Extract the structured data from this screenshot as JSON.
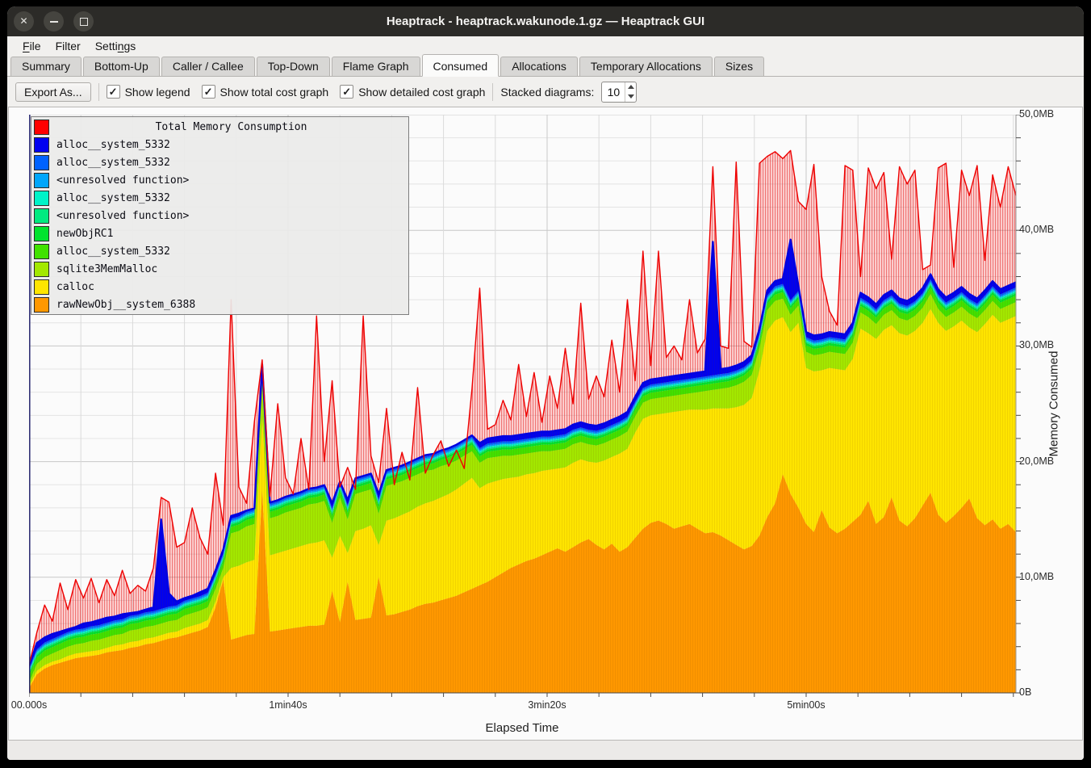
{
  "window": {
    "title": "Heaptrack - heaptrack.wakunode.1.gz — Heaptrack GUI",
    "controls": [
      {
        "name": "close",
        "glyph": "✕"
      },
      {
        "name": "minimize",
        "glyph": "–"
      },
      {
        "name": "maximize",
        "glyph": "□"
      }
    ]
  },
  "menu": {
    "items": [
      {
        "label": "File",
        "accel_index": 0
      },
      {
        "label": "Filter",
        "accel_index": -1
      },
      {
        "label": "Settings",
        "accel_index": 5
      }
    ]
  },
  "tabs": {
    "items": [
      "Summary",
      "Bottom-Up",
      "Caller / Callee",
      "Top-Down",
      "Flame Graph",
      "Consumed",
      "Allocations",
      "Temporary Allocations",
      "Sizes"
    ],
    "active": "Consumed"
  },
  "toolbar": {
    "export_label": "Export As...",
    "checkboxes": [
      {
        "label": "Show legend",
        "checked": true
      },
      {
        "label": "Show total cost graph",
        "checked": true
      },
      {
        "label": "Show detailed cost graph",
        "checked": true
      }
    ],
    "stacked_label": "Stacked diagrams:",
    "stacked_value": "10"
  },
  "chart_data": {
    "type": "area",
    "legend_title": "Total Memory Consumption",
    "xlabel": "Elapsed Time",
    "ylabel": "Memory Consumed",
    "ylim": [
      0,
      50
    ],
    "t_end_s": 381,
    "samples": 128,
    "grid": {
      "x_minor_step_s": 20,
      "x_major_step_s": 100,
      "y_minor_step_mb": 2,
      "y_major_step_mb": 10
    },
    "x_ticks": [
      {
        "t": 0,
        "label": "00.000s"
      },
      {
        "t": 100,
        "label": "1min40s"
      },
      {
        "t": 200,
        "label": "3min20s"
      },
      {
        "t": 300,
        "label": "5min00s"
      }
    ],
    "y_ticks": [
      {
        "mb": 0,
        "label": "0B"
      },
      {
        "mb": 10,
        "label": "10,0MB"
      },
      {
        "mb": 20,
        "label": "20,0MB"
      },
      {
        "mb": 30,
        "label": "30,0MB"
      },
      {
        "mb": 40,
        "label": "40,0MB"
      },
      {
        "mb": 50,
        "label": "50,0MB"
      }
    ],
    "total": {
      "name": "Total Memory Consumption",
      "color": "#ff0000",
      "values": [
        2.4,
        5.2,
        7.6,
        6.2,
        9.5,
        7.2,
        9.8,
        8.2,
        9.9,
        7.8,
        9.8,
        8.4,
        10.6,
        8.6,
        9.3,
        8.8,
        10.8,
        16.9,
        16.5,
        12.6,
        13.0,
        16.0,
        13.4,
        12.0,
        19.0,
        14.5,
        34.0,
        17.8,
        16.4,
        23.5,
        28.8,
        17.0,
        25.0,
        18.6,
        17.2,
        22.0,
        17.6,
        32.6,
        20.0,
        27.0,
        17.8,
        19.5,
        17.6,
        32.6,
        20.5,
        18.2,
        24.6,
        18.0,
        20.8,
        18.4,
        26.4,
        19.0,
        20.6,
        21.8,
        19.6,
        21.0,
        19.4,
        26.3,
        35.0,
        22.8,
        23.2,
        25.3,
        23.6,
        28.4,
        23.9,
        27.7,
        23.4,
        27.4,
        24.6,
        29.8,
        25.0,
        33.7,
        25.4,
        27.4,
        25.6,
        30.5,
        26.0,
        34.0,
        27.0,
        38.2,
        28.3,
        38.2,
        29.0,
        30.0,
        28.8,
        34.0,
        29.4,
        30.6,
        45.5,
        30.0,
        29.8,
        45.9,
        30.4,
        29.9,
        45.8,
        46.4,
        46.8,
        46.2,
        46.9,
        42.5,
        41.8,
        45.7,
        36.0,
        33.0,
        31.8,
        45.6,
        45.2,
        36.0,
        45.4,
        43.6,
        45.0,
        37.5,
        45.5,
        44.0,
        45.2,
        36.6,
        37.0,
        45.4,
        45.8,
        36.8,
        45.2,
        43.0,
        45.6,
        37.4,
        44.8,
        42.0,
        45.5,
        43.0
      ]
    },
    "stack_top": [
      2.0,
      4.3,
      4.8,
      5.1,
      5.3,
      5.5,
      5.7,
      6.0,
      6.1,
      6.3,
      6.5,
      6.6,
      6.8,
      6.9,
      7.0,
      7.2,
      7.4,
      15.0,
      8.6,
      7.9,
      8.2,
      8.4,
      8.7,
      9.0,
      10.6,
      12.4,
      15.3,
      15.5,
      15.6,
      15.6,
      28.4,
      15.8,
      15.9,
      16.0,
      16.0,
      16.1,
      16.2,
      16.2,
      16.3,
      16.4,
      16.5,
      16.7,
      16.9,
      17.0,
      17.1,
      17.2,
      17.3,
      17.4,
      17.6,
      18.0,
      18.3,
      18.5,
      18.5,
      18.6,
      18.7,
      18.8,
      18.9,
      19.0,
      21.6,
      22.0,
      22.1,
      22.2,
      22.2,
      22.3,
      22.4,
      22.5,
      22.6,
      22.6,
      22.7,
      22.8,
      23.2,
      23.4,
      23.2,
      23.1,
      23.3,
      23.6,
      23.9,
      24.3,
      25.6,
      26.8,
      27.1,
      27.2,
      27.3,
      27.4,
      27.5,
      27.6,
      27.7,
      27.8,
      39.0,
      28.0,
      28.1,
      28.3,
      28.6,
      29.2,
      31.5,
      34.8,
      35.6,
      35.8,
      39.2,
      35.2,
      31.2,
      30.9,
      31.0,
      31.2,
      31.1,
      31.0,
      32.0,
      34.6,
      34.2,
      33.6,
      34.4,
      34.8,
      34.1,
      33.9,
      34.3,
      35.0,
      36.2,
      34.9,
      34.2,
      34.6,
      35.1,
      34.5,
      34.1,
      34.8,
      35.6,
      34.9,
      35.2,
      35.5
    ],
    "series": [
      {
        "name": "rawNewObj__system_6388",
        "color": "#ff9800",
        "values": [
          0.4,
          1.6,
          2.1,
          2.4,
          2.6,
          2.8,
          3.0,
          3.1,
          3.2,
          3.3,
          3.5,
          3.6,
          3.7,
          3.9,
          4.0,
          4.2,
          4.3,
          4.5,
          4.7,
          4.8,
          5.0,
          5.2,
          5.4,
          5.7,
          7.4,
          9.8,
          4.6,
          4.8,
          5.0,
          5.1,
          17.5,
          5.3,
          5.4,
          5.5,
          5.6,
          5.7,
          5.8,
          5.8,
          5.9,
          8.8,
          6.1,
          9.6,
          6.3,
          6.4,
          6.5,
          10.0,
          6.7,
          6.8,
          7.0,
          7.2,
          7.5,
          7.7,
          7.8,
          8.0,
          8.2,
          8.4,
          8.7,
          9.0,
          9.3,
          9.6,
          10.0,
          10.4,
          10.8,
          11.1,
          11.4,
          11.6,
          11.9,
          12.2,
          12.5,
          12.2,
          12.6,
          13.0,
          13.3,
          12.8,
          12.4,
          12.9,
          12.2,
          12.6,
          13.4,
          14.2,
          14.7,
          14.9,
          14.6,
          14.2,
          14.4,
          14.6,
          14.2,
          13.8,
          13.9,
          13.6,
          13.2,
          12.8,
          12.4,
          12.7,
          13.6,
          15.2,
          16.4,
          18.9,
          17.2,
          16.0,
          14.6,
          13.9,
          15.8,
          14.3,
          13.8,
          14.2,
          14.8,
          15.4,
          16.6,
          14.6,
          15.2,
          16.9,
          14.9,
          14.4,
          15.1,
          16.2,
          17.3,
          15.4,
          14.7,
          15.3,
          16.0,
          16.8,
          15.1,
          14.5,
          15.0,
          14.2,
          14.6,
          13.9
        ]
      },
      {
        "name": "calloc",
        "color": "#ffe500",
        "values": [
          0.2,
          0.3,
          0.3,
          0.3,
          0.3,
          0.4,
          0.4,
          0.4,
          0.4,
          0.4,
          0.4,
          0.5,
          0.5,
          0.5,
          0.5,
          0.5,
          0.5,
          0.5,
          0.5,
          0.5,
          0.6,
          0.6,
          0.6,
          0.6,
          0.5,
          0.2,
          6.2,
          6.2,
          6.3,
          6.4,
          6.4,
          6.6,
          6.7,
          6.8,
          6.9,
          7.0,
          7.1,
          7.2,
          7.3,
          2.9,
          7.5,
          2.5,
          7.7,
          7.8,
          8.0,
          2.8,
          8.2,
          8.3,
          8.4,
          8.5,
          8.6,
          8.7,
          8.8,
          8.9,
          9.0,
          9.2,
          9.4,
          9.6,
          8.4,
          8.5,
          8.3,
          8.1,
          7.8,
          7.6,
          7.5,
          7.4,
          7.3,
          7.1,
          6.9,
          7.3,
          7.3,
          7.2,
          6.7,
          7.1,
          7.7,
          7.5,
          8.5,
          8.5,
          9.1,
          9.5,
          9.3,
          9.2,
          9.6,
          10.1,
          10.0,
          9.9,
          10.3,
          10.7,
          10.7,
          11.0,
          11.4,
          11.9,
          12.5,
          12.8,
          14.3,
          16.1,
          15.8,
          13.6,
          14.0,
          16.0,
          13.5,
          13.9,
          12.1,
          13.8,
          14.2,
          13.7,
          14.1,
          16.1,
          14.5,
          16.0,
          16.2,
          14.9,
          16.2,
          16.5,
          16.2,
          15.8,
          15.9,
          16.6,
          16.6,
          16.4,
          16.2,
          14.8,
          16.1,
          17.4,
          17.7,
          17.8,
          17.7,
          18.7
        ]
      },
      {
        "name": "sqlite3MemMalloc",
        "color": "#a3e800",
        "values": [
          0.3,
          0.6,
          0.7,
          0.7,
          0.8,
          0.8,
          0.8,
          0.8,
          0.9,
          0.9,
          0.9,
          0.9,
          0.9,
          1.0,
          1.0,
          1.0,
          1.0,
          1.0,
          1.0,
          1.0,
          1.1,
          1.1,
          1.1,
          1.1,
          1.1,
          0.8,
          3.0,
          3.0,
          3.1,
          3.1,
          3.1,
          3.2,
          3.2,
          3.3,
          3.3,
          3.3,
          3.4,
          3.4,
          3.4,
          3.0,
          3.3,
          2.9,
          3.2,
          3.2,
          3.1,
          2.7,
          3.0,
          3.0,
          2.9,
          2.9,
          2.8,
          2.8,
          2.7,
          2.7,
          2.6,
          2.5,
          2.4,
          2.3,
          2.2,
          2.2,
          2.1,
          2.0,
          1.9,
          1.9,
          1.8,
          1.8,
          1.7,
          1.6,
          1.6,
          1.6,
          1.6,
          1.5,
          1.5,
          1.5,
          1.5,
          1.5,
          1.5,
          1.5,
          1.4,
          1.4,
          1.4,
          1.4,
          1.4,
          1.4,
          1.4,
          1.4,
          1.5,
          1.6,
          1.6,
          1.7,
          1.8,
          1.9,
          2.0,
          2.0,
          1.9,
          1.8,
          1.7,
          1.6,
          1.5,
          1.5,
          1.4,
          1.4,
          1.4,
          1.4,
          1.4,
          1.4,
          1.4,
          1.4,
          1.4,
          1.3,
          1.3,
          1.3,
          1.3,
          1.3,
          1.3,
          1.3,
          1.3,
          1.2,
          1.2,
          1.2,
          1.2,
          1.2,
          1.2,
          1.2,
          1.2,
          1.2,
          1.2,
          1.2
        ]
      },
      {
        "name": "alloc__system_5332",
        "color": "#41e200",
        "const_value": 0.55
      },
      {
        "name": "newObjRC1",
        "color": "#00e32e",
        "const_value": 0.2
      },
      {
        "name": "<unresolved function>",
        "color": "#00ea80",
        "const_value": 0.12
      },
      {
        "name": "alloc__system_5332",
        "color": "#00f3c8",
        "const_value": 0.12
      },
      {
        "name": "<unresolved function>",
        "color": "#00a6fb",
        "const_value": 0.12
      },
      {
        "name": "alloc__system_5332",
        "color": "#0062ff",
        "const_value": 0.15
      },
      {
        "name": "alloc__system_5332",
        "color": "#0000f0",
        "fit_to_stack_top": true
      }
    ],
    "style": {
      "total_line_color": "#ee0000",
      "stack_top_line_color": "#0000e0",
      "grid_minor_color": "#e4e4e4",
      "grid_major_color": "#c8c8c8",
      "axis_color": "#4a4a4a",
      "left_axis_color": "#26266e",
      "right_edge_color": "#9a9a9a"
    }
  }
}
